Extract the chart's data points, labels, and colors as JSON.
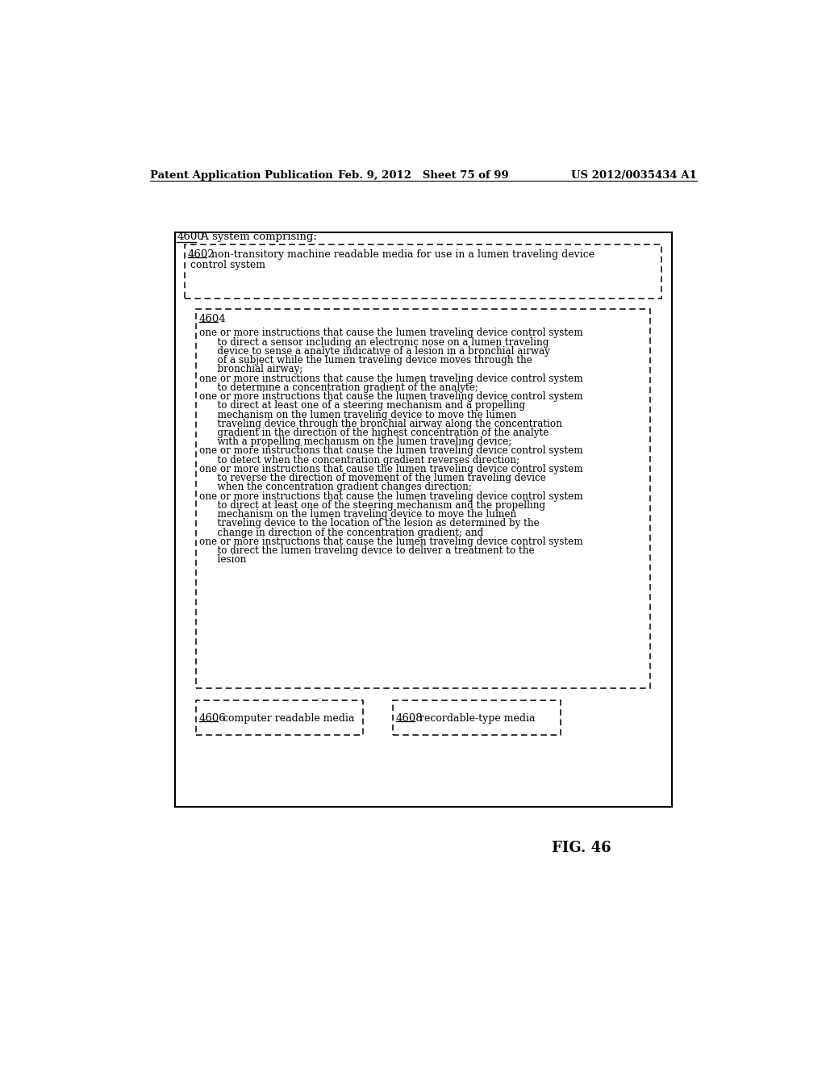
{
  "header_left": "Patent Application Publication",
  "header_center": "Feb. 9, 2012   Sheet 75 of 99",
  "header_right": "US 2012/0035434 A1",
  "fig_label": "FIG. 46",
  "box4604_lines": [
    "one or more instructions that cause the lumen traveling device control system",
    "      to direct a sensor including an electronic nose on a lumen traveling",
    "      device to sense a analyte indicative of a lesion in a bronchial airway",
    "      of a subject while the lumen traveling device moves through the",
    "      bronchial airway;",
    "one or more instructions that cause the lumen traveling device control system",
    "      to determine a concentration gradient of the analyte;",
    "one or more instructions that cause the lumen traveling device control system",
    "      to direct at least one of a steering mechanism and a propelling",
    "      mechanism on the lumen traveling device to move the lumen",
    "      traveling device through the bronchial airway along the concentration",
    "      gradient in the direction of the highest concentration of the analyte",
    "      with a propelling mechanism on the lumen traveling device;",
    "one or more instructions that cause the lumen traveling device control system",
    "      to detect when the concentration gradient reverses direction;",
    "one or more instructions that cause the lumen traveling device control system",
    "      to reverse the direction of movement of the lumen traveling device",
    "      when the concentration gradient changes direction;",
    "one or more instructions that cause the lumen traveling device control system",
    "      to direct at least one of the steering mechanism and the propelling",
    "      mechanism on the lumen traveling device to move the lumen",
    "      traveling device to the location of the lesion as determined by the",
    "      change in direction of the concentration gradient; and",
    "one or more instructions that cause the lumen traveling device control system",
    "      to direct the lumen traveling device to deliver a treatment to the",
    "      lesion"
  ],
  "bg_color": "#ffffff"
}
